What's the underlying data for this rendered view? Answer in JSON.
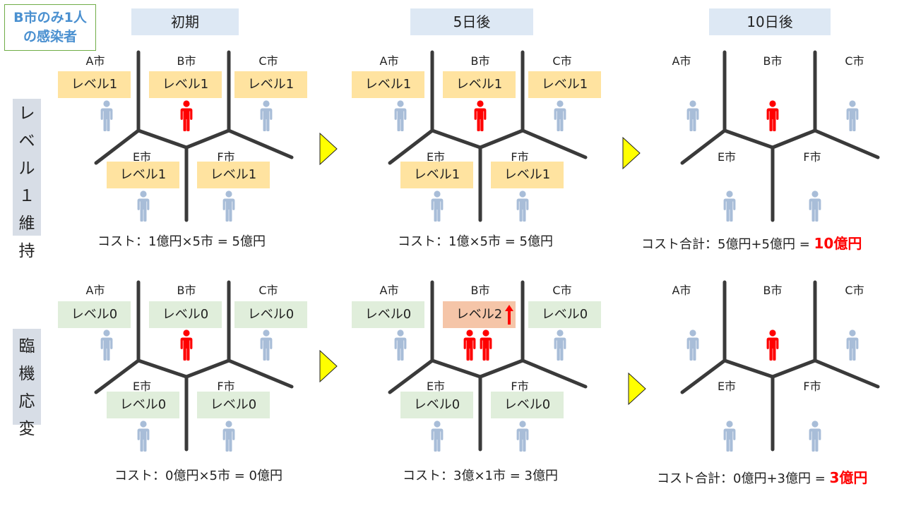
{
  "title": {
    "line1": "B市のみ1人",
    "line2": "の感染者"
  },
  "phases": [
    "初期",
    "5日後",
    "10日後"
  ],
  "rows": [
    {
      "label": [
        "レ",
        "ベ",
        "ル",
        "１",
        "維",
        "持"
      ]
    },
    {
      "label": [
        "臨",
        "機",
        "応",
        "変"
      ]
    }
  ],
  "cities": {
    "a": "A市",
    "b": "B市",
    "c": "C市",
    "e": "E市",
    "f": "F市"
  },
  "levels": {
    "l0": "レベル0",
    "l1": "レベル1",
    "l2": "レベル2"
  },
  "costs": {
    "r1p1": "コスト：1億円×5市 = 5億円",
    "r1p2": "コスト：1億×5市 = 5億円",
    "r1p3": "コスト合計：5億円+5億円 = ",
    "r1p3_total": "10億円",
    "r2p1": "コスト：0億円×5市 = 0億円",
    "r2p2": "コスト：3億×1市 = 3億円",
    "r2p3": "コスト合計：0億円+3億円 = ",
    "r2p3_total": "3億円"
  },
  "colors": {
    "person_healthy": "#a8bdd8",
    "person_infected": "#ff0000",
    "road": "#3a3a3a",
    "arrow": "#ffff00"
  }
}
